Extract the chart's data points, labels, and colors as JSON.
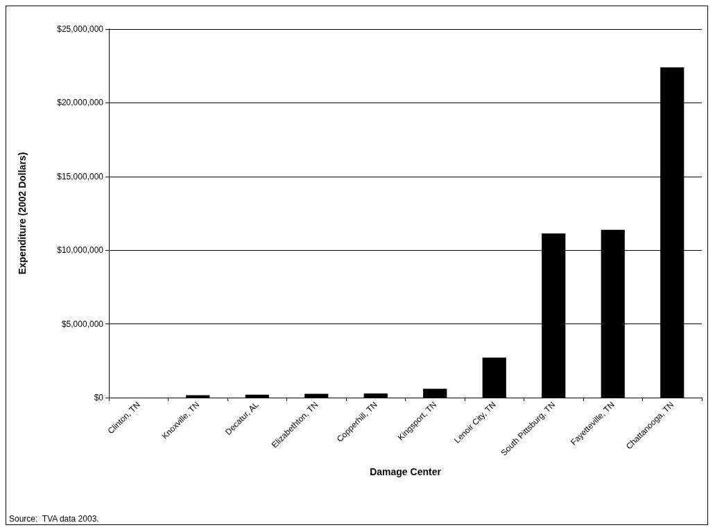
{
  "chart_data": {
    "type": "bar",
    "xlabel": "Damage Center",
    "ylabel": "Expenditure (2002 Dollars)",
    "categories": [
      "Clinton, TN",
      "Knoxville, TN",
      "Decatur, AL",
      "Elizabethton, TN",
      "Copperhill, TN",
      "Kingsport, TN",
      "Lenoir City, TN",
      "South Pittsburg, TN",
      "Fayetteville, TN",
      "Chattanooga, TN"
    ],
    "values": [
      0,
      170000,
      200000,
      260000,
      280000,
      600000,
      2710000,
      11140000,
      11380000,
      22400000
    ],
    "color": "#000000",
    "ylim": [
      0,
      25000000
    ],
    "yticks": [
      {
        "value": 0,
        "label": "$0"
      },
      {
        "value": 5000000,
        "label": "$5,000,000"
      },
      {
        "value": 10000000,
        "label": "$10,000,000"
      },
      {
        "value": 15000000,
        "label": "$15,000,000"
      },
      {
        "value": 20000000,
        "label": "$20,000,000"
      },
      {
        "value": 25000000,
        "label": "$25,000,000"
      }
    ],
    "grid": "y",
    "annotations": [
      "Source:  TVA data 2003."
    ]
  }
}
